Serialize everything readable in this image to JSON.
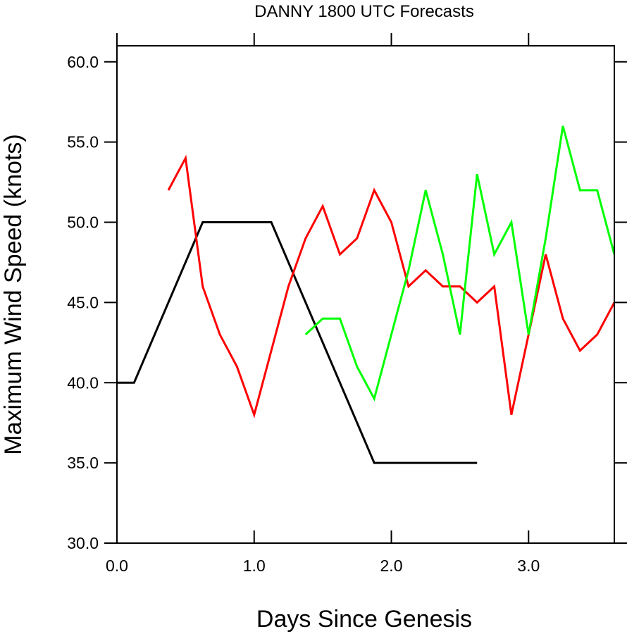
{
  "chart_data": {
    "type": "line",
    "title": "DANNY 1800 UTC Forecasts",
    "xlabel": "Days Since Genesis",
    "ylabel": "Maximum Wind Speed (knots)",
    "xlim": [
      0.0,
      3.625
    ],
    "ylim": [
      30.0,
      61.0
    ],
    "x_ticks": [
      "0.0",
      "1.0",
      "2.0",
      "3.0"
    ],
    "x_tick_values": [
      0.0,
      1.0,
      2.0,
      3.0
    ],
    "y_ticks": [
      "30.0",
      "35.0",
      "40.0",
      "45.0",
      "50.0",
      "55.0",
      "60.0"
    ],
    "y_tick_values": [
      30.0,
      35.0,
      40.0,
      45.0,
      50.0,
      55.0,
      60.0
    ],
    "grid": false,
    "series": [
      {
        "color": "#000000",
        "x": [
          0.0,
          0.125,
          0.625,
          1.125,
          1.875,
          2.625
        ],
        "y": [
          40,
          40,
          50,
          50,
          35,
          35
        ]
      },
      {
        "color": "#ff0000",
        "x": [
          0.375,
          0.5,
          0.625,
          0.75,
          0.875,
          1.0,
          1.125,
          1.25,
          1.375,
          1.5,
          1.625,
          1.75,
          1.875,
          2.0,
          2.125,
          2.25,
          2.375,
          2.5,
          2.625,
          2.75,
          2.875,
          3.0,
          3.125,
          3.25,
          3.375,
          3.5,
          3.625
        ],
        "y": [
          52,
          54,
          46,
          43,
          41,
          38,
          42,
          46,
          49,
          51,
          48,
          49,
          52,
          50,
          46,
          47,
          46,
          46,
          45,
          46,
          38,
          43,
          48,
          44,
          42,
          43,
          45
        ]
      },
      {
        "color": "#00ff00",
        "x": [
          1.375,
          1.5,
          1.625,
          1.75,
          1.875,
          2.0,
          2.125,
          2.25,
          2.375,
          2.5,
          2.625,
          2.75,
          2.875,
          3.0,
          3.125,
          3.25,
          3.375,
          3.5,
          3.625
        ],
        "y": [
          43,
          44,
          44,
          41,
          39,
          43,
          47,
          52,
          48,
          43,
          53,
          48,
          50,
          43,
          49,
          56,
          52,
          52,
          48
        ]
      }
    ]
  }
}
